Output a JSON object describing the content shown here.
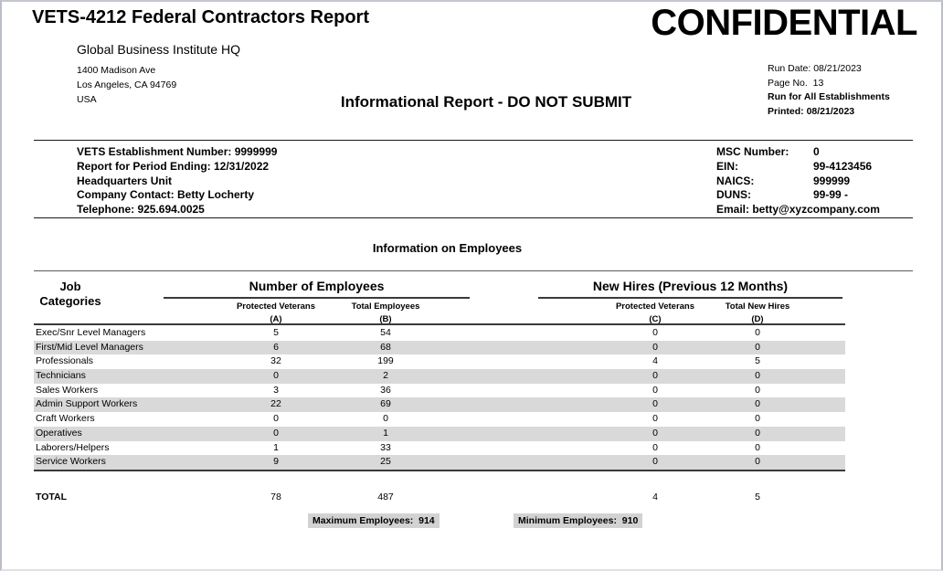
{
  "page": {
    "title": "VETS-4212 Federal Contractors Report",
    "watermark": "CONFIDENTIAL",
    "center_heading": "Informational Report - DO NOT SUBMIT"
  },
  "company": {
    "name": "Global Business Institute HQ",
    "address_line1": "1400 Madison Ave",
    "address_line2": "Los Angeles, CA 94769",
    "address_line3": "USA"
  },
  "run_meta": {
    "run_date": "Run Date: 08/21/2023",
    "page_no": "Page No.  13",
    "run_for": "Run for All Establishments",
    "printed": "Printed: 08/21/2023"
  },
  "establishment": {
    "left_lines": [
      "VETS Establishment Number: 9999999",
      "Report for Period Ending: 12/31/2022",
      "Headquarters Unit",
      "Company Contact: Betty Locherty",
      "Telephone: 925.694.0025"
    ],
    "ids": [
      {
        "label": "MSC Number:",
        "value": "0"
      },
      {
        "label": "EIN:",
        "value": "99-4123456"
      },
      {
        "label": "NAICS:",
        "value": "999999"
      },
      {
        "label": "DUNS:",
        "value": "99-99 -"
      }
    ],
    "email": "Email: betty@xyzcompany.com"
  },
  "employees_section": {
    "heading": "Information on Employees",
    "table": {
      "job_header_line1": "Job",
      "job_header_line2": "Categories",
      "group1": "Number of Employees",
      "group2": "New Hires (Previous 12 Months)",
      "col_a": {
        "label": "Protected Veterans",
        "letter": "(A)"
      },
      "col_b": {
        "label": "Total Employees",
        "letter": "(B)"
      },
      "col_c": {
        "label": "Protected Veterans",
        "letter": "(C)"
      },
      "col_d": {
        "label": "Total New Hires",
        "letter": "(D)"
      },
      "rows": [
        {
          "category": "Exec/Snr Level Managers",
          "a": "5",
          "b": "54",
          "c": "0",
          "d": "0"
        },
        {
          "category": "First/Mid Level Managers",
          "a": "6",
          "b": "68",
          "c": "0",
          "d": "0"
        },
        {
          "category": "Professionals",
          "a": "32",
          "b": "199",
          "c": "4",
          "d": "5"
        },
        {
          "category": "Technicians",
          "a": "0",
          "b": "2",
          "c": "0",
          "d": "0"
        },
        {
          "category": "Sales Workers",
          "a": "3",
          "b": "36",
          "c": "0",
          "d": "0"
        },
        {
          "category": "Admin Support Workers",
          "a": "22",
          "b": "69",
          "c": "0",
          "d": "0"
        },
        {
          "category": "Craft Workers",
          "a": "0",
          "b": "0",
          "c": "0",
          "d": "0"
        },
        {
          "category": "Operatives",
          "a": "0",
          "b": "1",
          "c": "0",
          "d": "0"
        },
        {
          "category": "Laborers/Helpers",
          "a": "1",
          "b": "33",
          "c": "0",
          "d": "0"
        },
        {
          "category": "Service Workers",
          "a": "9",
          "b": "25",
          "c": "0",
          "d": "0"
        }
      ],
      "total": {
        "label": "TOTAL",
        "a": "78",
        "b": "487",
        "c": "4",
        "d": "5"
      }
    },
    "max_employees": "Maximum Employees:  914",
    "min_employees": "Minimum Employees:  910"
  },
  "colors": {
    "row_shade": "#d9d9d9",
    "box_shade": "#d2d2d2"
  }
}
